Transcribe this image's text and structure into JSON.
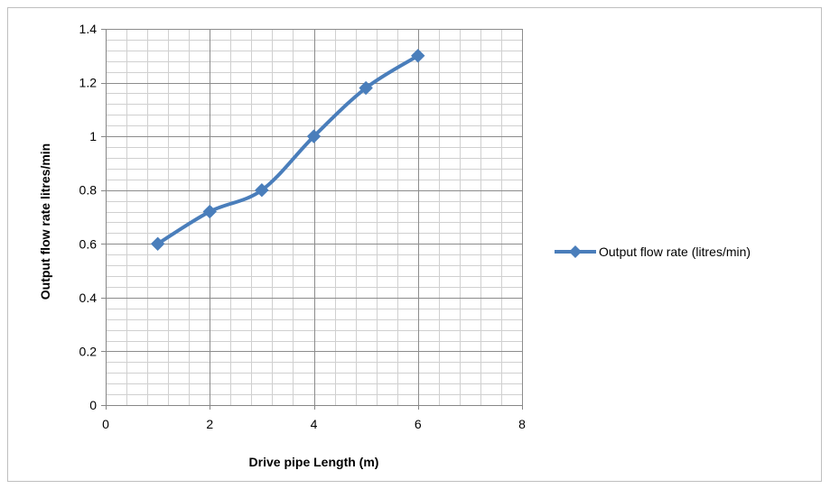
{
  "chart_data": {
    "type": "line",
    "title": "",
    "xlabel": "Drive pipe Length (m)",
    "ylabel": "Output flow rate litres/min",
    "xlim": [
      0,
      8
    ],
    "ylim": [
      0,
      1.4
    ],
    "x_ticks": [
      0,
      2,
      4,
      6,
      8
    ],
    "y_ticks": [
      0,
      0.2,
      0.4,
      0.6,
      0.8,
      1,
      1.2,
      1.4
    ],
    "x_tick_labels": [
      "0",
      "2",
      "4",
      "6",
      "8"
    ],
    "y_tick_labels": [
      "0",
      "0.2",
      "0.4",
      "0.6",
      "0.8",
      "1",
      "1.2",
      "1.4"
    ],
    "grid": true,
    "legend_position": "right",
    "series": [
      {
        "name": "Output flow rate (litres/min)",
        "color": "#4a7ebb",
        "marker": "diamond",
        "smooth": true,
        "x": [
          1,
          2,
          3,
          4,
          5,
          6
        ],
        "y": [
          0.6,
          0.72,
          0.8,
          1.0,
          1.18,
          1.3
        ]
      }
    ]
  }
}
